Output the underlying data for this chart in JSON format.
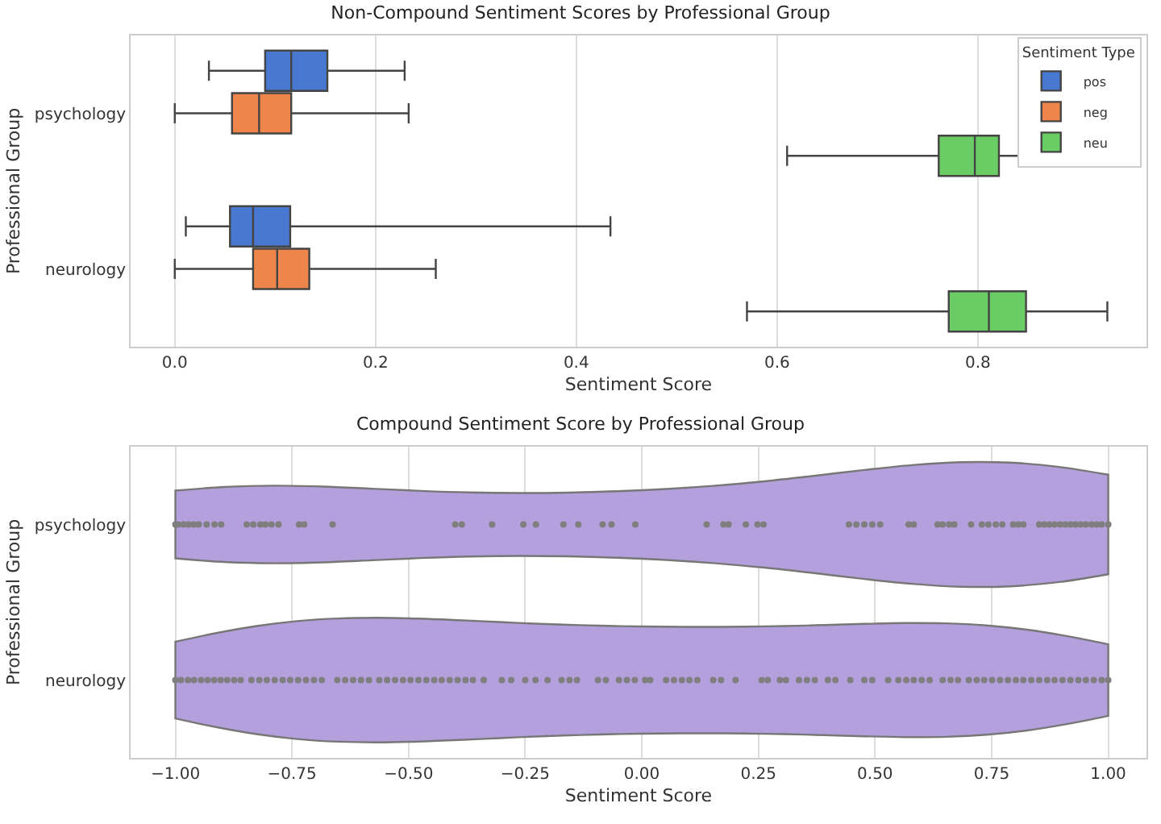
{
  "chart_data": [
    {
      "type": "box",
      "orientation": "horizontal",
      "title": "Non-Compound Sentiment Scores by Professional Group",
      "xlabel": "Sentiment Score",
      "ylabel": "Professional Group",
      "legend_title": "Sentiment Type",
      "legend": "top right",
      "grid": "x",
      "categories": [
        "psychology",
        "neurology"
      ],
      "xlim": [
        -0.044,
        0.968
      ],
      "xticks": [
        {
          "value": 0,
          "label": "0.0"
        },
        {
          "value": 0.2,
          "label": "0.2"
        },
        {
          "value": 0.4,
          "label": "0.4"
        },
        {
          "value": 0.6,
          "label": "0.6"
        },
        {
          "value": 0.8,
          "label": "0.8"
        }
      ],
      "series": [
        {
          "name": "pos",
          "color": "#4878d0",
          "boxes": [
            {
              "low": 0.034,
              "q1": 0.09,
              "median": 0.116,
              "q3": 0.152,
              "high": 0.229
            },
            {
              "low": 0.011,
              "q1": 0.055,
              "median": 0.078,
              "q3": 0.115,
              "high": 0.434
            }
          ]
        },
        {
          "name": "neg",
          "color": "#ee854a",
          "boxes": [
            {
              "low": 0.0,
              "q1": 0.057,
              "median": 0.084,
              "q3": 0.116,
              "high": 0.233
            },
            {
              "low": 0.0,
              "q1": 0.078,
              "median": 0.102,
              "q3": 0.134,
              "high": 0.26
            }
          ]
        },
        {
          "name": "neu",
          "color": "#6acc64",
          "boxes": [
            {
              "low": 0.61,
              "q1": 0.761,
              "median": 0.797,
              "q3": 0.821,
              "high": 0.902
            },
            {
              "low": 0.57,
              "q1": 0.771,
              "median": 0.811,
              "q3": 0.848,
              "high": 0.929
            }
          ]
        }
      ]
    },
    {
      "type": "scatter",
      "orientation": "horizontal",
      "title": "Compound Sentiment Score by Professional Group",
      "xlabel": "Sentiment Score",
      "ylabel": "Professional Group",
      "grid": "x",
      "legend": false,
      "color": "#b4a0dc",
      "categories": [
        "psychology",
        "neurology"
      ],
      "xlim": [
        -1.096,
        1.082
      ],
      "xticks": [
        {
          "value": -1,
          "label": "−1.00"
        },
        {
          "value": -0.75,
          "label": "−0.75"
        },
        {
          "value": -0.5,
          "label": "−0.50"
        },
        {
          "value": -0.25,
          "label": "−0.25"
        },
        {
          "value": 0,
          "label": "0.00"
        },
        {
          "value": 0.25,
          "label": "0.25"
        },
        {
          "value": 0.5,
          "label": "0.50"
        },
        {
          "value": 0.75,
          "label": "0.75"
        },
        {
          "value": 1,
          "label": "1.00"
        }
      ],
      "series": [
        {
          "color": "#7f7f7f",
          "x": [
            "psychology",
            "psychology",
            "psychology",
            "psychology",
            "psychology",
            "psychology",
            "psychology",
            "psychology",
            "psychology",
            "psychology",
            "psychology",
            "psychology",
            "psychology",
            "psychology",
            "psychology",
            "psychology",
            "psychology",
            "psychology",
            "psychology",
            "psychology",
            "psychology",
            "psychology",
            "psychology",
            "psychology",
            "psychology",
            "psychology",
            "psychology",
            "psychology",
            "psychology",
            "psychology",
            "psychology",
            "psychology",
            "psychology",
            "psychology",
            "psychology",
            "psychology",
            "psychology",
            "psychology",
            "psychology",
            "psychology",
            "psychology",
            "psychology",
            "psychology",
            "psychology",
            "psychology",
            "psychology",
            "psychology",
            "psychology",
            "psychology",
            "psychology",
            "psychology",
            "psychology",
            "psychology",
            "psychology",
            "psychology",
            "psychology",
            "psychology",
            "psychology",
            "psychology",
            "psychology",
            "psychology",
            "psychology",
            "psychology",
            "psychology",
            "psychology",
            "psychology",
            "psychology"
          ],
          "values": [
            -1.0,
            -0.994,
            -0.983,
            -0.972,
            -0.961,
            -0.95,
            -0.933,
            -0.916,
            -0.902,
            -0.847,
            -0.833,
            -0.818,
            -0.807,
            -0.794,
            -0.779,
            -0.735,
            -0.724,
            -0.663,
            -0.4,
            -0.386,
            -0.321,
            -0.254,
            -0.227,
            -0.168,
            -0.136,
            -0.084,
            -0.065,
            -0.014,
            0.139,
            0.175,
            0.186,
            0.223,
            0.248,
            0.261,
            0.444,
            0.46,
            0.477,
            0.494,
            0.511,
            0.572,
            0.583,
            0.634,
            0.645,
            0.659,
            0.67,
            0.706,
            0.729,
            0.743,
            0.759,
            0.773,
            0.796,
            0.807,
            0.818,
            0.852,
            0.863,
            0.874,
            0.885,
            0.897,
            0.908,
            0.919,
            0.93,
            0.941,
            0.952,
            0.964,
            0.975,
            0.986,
            1.0
          ]
        },
        {
          "color": "#7f7f7f",
          "x": [
            "neurology",
            "neurology",
            "neurology",
            "neurology",
            "neurology",
            "neurology",
            "neurology",
            "neurology",
            "neurology",
            "neurology",
            "neurology",
            "neurology",
            "neurology",
            "neurology",
            "neurology",
            "neurology",
            "neurology",
            "neurology",
            "neurology",
            "neurology",
            "neurology",
            "neurology",
            "neurology",
            "neurology",
            "neurology",
            "neurology",
            "neurology",
            "neurology",
            "neurology",
            "neurology",
            "neurology",
            "neurology",
            "neurology",
            "neurology",
            "neurology",
            "neurology",
            "neurology",
            "neurology",
            "neurology",
            "neurology",
            "neurology",
            "neurology",
            "neurology",
            "neurology",
            "neurology",
            "neurology",
            "neurology",
            "neurology",
            "neurology",
            "neurology",
            "neurology",
            "neurology",
            "neurology",
            "neurology",
            "neurology",
            "neurology",
            "neurology",
            "neurology",
            "neurology",
            "neurology",
            "neurology",
            "neurology",
            "neurology",
            "neurology",
            "neurology",
            "neurology",
            "neurology",
            "neurology",
            "neurology",
            "neurology",
            "neurology",
            "neurology",
            "neurology",
            "neurology",
            "neurology",
            "neurology",
            "neurology",
            "neurology",
            "neurology",
            "neurology",
            "neurology",
            "neurology",
            "neurology",
            "neurology",
            "neurology",
            "neurology",
            "neurology",
            "neurology",
            "neurology",
            "neurology",
            "neurology",
            "neurology",
            "neurology",
            "neurology",
            "neurology",
            "neurology",
            "neurology",
            "neurology",
            "neurology",
            "neurology",
            "neurology",
            "neurology",
            "neurology"
          ],
          "values": [
            -1.0,
            -0.988,
            -0.973,
            -0.96,
            -0.945,
            -0.931,
            -0.917,
            -0.903,
            -0.889,
            -0.874,
            -0.86,
            -0.837,
            -0.82,
            -0.804,
            -0.787,
            -0.77,
            -0.754,
            -0.737,
            -0.72,
            -0.703,
            -0.686,
            -0.653,
            -0.636,
            -0.619,
            -0.602,
            -0.585,
            -0.563,
            -0.546,
            -0.529,
            -0.512,
            -0.496,
            -0.479,
            -0.462,
            -0.445,
            -0.429,
            -0.412,
            -0.395,
            -0.378,
            -0.362,
            -0.339,
            -0.3,
            -0.28,
            -0.25,
            -0.228,
            -0.202,
            -0.172,
            -0.155,
            -0.139,
            -0.094,
            -0.077,
            -0.049,
            -0.032,
            -0.015,
            0.007,
            0.018,
            0.052,
            0.069,
            0.086,
            0.102,
            0.119,
            0.153,
            0.17,
            0.201,
            0.257,
            0.27,
            0.296,
            0.309,
            0.337,
            0.354,
            0.371,
            0.399,
            0.415,
            0.447,
            0.477,
            0.494,
            0.528,
            0.55,
            0.567,
            0.583,
            0.6,
            0.617,
            0.645,
            0.662,
            0.678,
            0.701,
            0.718,
            0.734,
            0.751,
            0.768,
            0.785,
            0.802,
            0.818,
            0.835,
            0.852,
            0.869,
            0.885,
            0.902,
            0.919,
            0.936,
            0.952,
            0.969,
            0.986,
            1.0
          ]
        }
      ]
    }
  ]
}
